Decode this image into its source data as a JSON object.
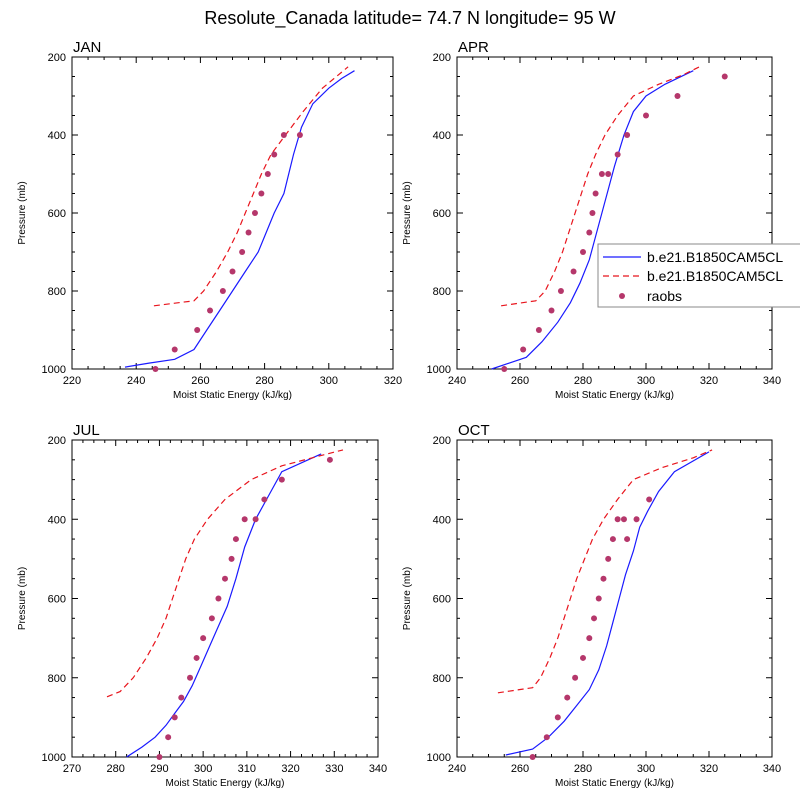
{
  "figure_title": "Resolute_Canada  latitude= 74.7 N longitude= 95 W",
  "colors": {
    "model_solid": "#1a1aff",
    "model_dashed": "#e8141c",
    "raobs": "#b5376b"
  },
  "legend": [
    "b.e21.B1850CAM5CL",
    "b.e21.B1850CAM5CL",
    "raobs"
  ],
  "chart_data": [
    {
      "type": "line",
      "title": "JAN",
      "xlabel": "Moist Static Energy (kJ/kg)",
      "ylabel": "Pressure (mb)",
      "xlim": [
        220,
        320
      ],
      "ylim": [
        200,
        1000
      ],
      "y_reversed": true,
      "xticks": [
        220,
        240,
        260,
        280,
        300,
        320
      ],
      "yticks": [
        200,
        400,
        600,
        800,
        1000
      ],
      "series": [
        {
          "name": "b.e21.B1850CAM5CL",
          "style": "solid",
          "x": [
            236.5,
            244,
            252,
            258,
            262,
            266,
            270,
            274,
            278,
            280.5,
            283,
            286,
            289,
            291.5,
            295,
            300,
            304,
            308
          ],
          "y": [
            995,
            985,
            975,
            950,
            900,
            850,
            800,
            750,
            700,
            650,
            600,
            550,
            450,
            380,
            320,
            280,
            255,
            235
          ]
        },
        {
          "name": "b.e21.B1850CAM5CL",
          "style": "dashed",
          "x": [
            245.5,
            258,
            261,
            265,
            268.5,
            271.5,
            274,
            276.5,
            279,
            282,
            286.5,
            292,
            298,
            306
          ],
          "y": [
            838,
            825,
            800,
            750,
            700,
            650,
            600,
            550,
            500,
            450,
            400,
            340,
            280,
            225
          ]
        },
        {
          "name": "raobs",
          "style": "markers",
          "x": [
            246,
            252,
            259,
            263,
            267,
            270,
            273,
            275,
            277,
            279,
            281,
            283,
            286,
            291
          ],
          "y": [
            1000,
            950,
            900,
            850,
            800,
            750,
            700,
            650,
            600,
            550,
            500,
            450,
            400,
            400
          ]
        }
      ]
    },
    {
      "type": "line",
      "title": "APR",
      "xlabel": "Moist Static Energy (kJ/kg)",
      "ylabel": "Pressure (mb)",
      "xlim": [
        240,
        340
      ],
      "ylim": [
        200,
        1000
      ],
      "y_reversed": true,
      "xticks": [
        240,
        260,
        280,
        300,
        320,
        340
      ],
      "yticks": [
        200,
        400,
        600,
        800,
        1000
      ],
      "series": [
        {
          "name": "b.e21.B1850CAM5CL",
          "style": "solid",
          "x": [
            251,
            262,
            267,
            272,
            276,
            279,
            282,
            284,
            286,
            288,
            290,
            293,
            296,
            300,
            306,
            315
          ],
          "y": [
            1000,
            970,
            930,
            880,
            830,
            780,
            720,
            660,
            600,
            540,
            480,
            400,
            340,
            300,
            270,
            235
          ]
        },
        {
          "name": "b.e21.B1850CAM5CL",
          "style": "dashed",
          "x": [
            254,
            265,
            268,
            271,
            273.5,
            275.5,
            277.5,
            279.5,
            281.5,
            284,
            287,
            291,
            296,
            304,
            312,
            317
          ],
          "y": [
            838,
            825,
            800,
            750,
            700,
            650,
            600,
            550,
            500,
            450,
            400,
            350,
            300,
            270,
            245,
            225
          ]
        },
        {
          "name": "raobs",
          "style": "markers",
          "x": [
            255,
            261,
            266,
            270,
            273,
            277,
            280,
            282,
            283,
            284,
            286,
            288,
            291,
            294,
            300,
            310,
            325
          ],
          "y": [
            1000,
            950,
            900,
            850,
            800,
            750,
            700,
            650,
            600,
            550,
            500,
            500,
            450,
            400,
            350,
            300,
            250
          ]
        }
      ]
    },
    {
      "type": "line",
      "title": "JUL",
      "xlabel": "Moist Static Energy (kJ/kg)",
      "ylabel": "Pressure (mb)",
      "xlim": [
        270,
        340
      ],
      "ylim": [
        200,
        1000
      ],
      "y_reversed": true,
      "xticks": [
        270,
        280,
        290,
        300,
        310,
        320,
        330,
        340
      ],
      "yticks": [
        200,
        400,
        600,
        800,
        1000
      ],
      "series": [
        {
          "name": "b.e21.B1850CAM5CL",
          "style": "solid",
          "x": [
            282.5,
            286,
            289,
            291.5,
            293.5,
            295.5,
            297.5,
            299.5,
            301.5,
            303.5,
            305.5,
            307.5,
            309.5,
            312,
            315,
            318,
            323,
            327
          ],
          "y": [
            1000,
            975,
            950,
            920,
            890,
            860,
            820,
            770,
            720,
            670,
            620,
            550,
            470,
            400,
            340,
            280,
            255,
            235
          ]
        },
        {
          "name": "b.e21.B1850CAM5CL",
          "style": "dashed",
          "x": [
            278,
            281,
            284,
            287,
            289.5,
            291.5,
            293,
            294.5,
            296,
            298,
            301,
            305,
            311,
            318,
            325,
            332
          ],
          "y": [
            848,
            835,
            800,
            750,
            700,
            650,
            600,
            550,
            500,
            450,
            400,
            350,
            300,
            265,
            245,
            225
          ]
        },
        {
          "name": "raobs",
          "style": "markers",
          "x": [
            290,
            292,
            293.5,
            295,
            297,
            298.5,
            300,
            302,
            303.5,
            305,
            306.5,
            307.5,
            309.5,
            312,
            314,
            318,
            329
          ],
          "y": [
            1000,
            950,
            900,
            850,
            800,
            750,
            700,
            650,
            600,
            550,
            500,
            450,
            400,
            400,
            350,
            300,
            250
          ]
        }
      ]
    },
    {
      "type": "line",
      "title": "OCT",
      "xlabel": "Moist Static Energy (kJ/kg)",
      "ylabel": "Pressure (mb)",
      "xlim": [
        240,
        340
      ],
      "ylim": [
        200,
        1000
      ],
      "y_reversed": true,
      "xticks": [
        240,
        260,
        280,
        300,
        320,
        340
      ],
      "yticks": [
        200,
        400,
        600,
        800,
        1000
      ],
      "series": [
        {
          "name": "b.e21.B1850CAM5CL",
          "style": "solid",
          "x": [
            255.5,
            264,
            269,
            274,
            278,
            282,
            285,
            287.5,
            289.5,
            291.5,
            293.5,
            296,
            298,
            300.5,
            304,
            309,
            320
          ],
          "y": [
            995,
            980,
            950,
            910,
            870,
            830,
            780,
            720,
            660,
            600,
            540,
            480,
            420,
            380,
            330,
            280,
            230
          ]
        },
        {
          "name": "b.e21.B1850CAM5CL",
          "style": "dashed",
          "x": [
            253,
            264,
            266.5,
            269.5,
            272,
            274,
            276,
            278,
            280.5,
            283,
            286.5,
            291,
            296,
            305,
            315,
            321
          ],
          "y": [
            838,
            825,
            800,
            750,
            700,
            650,
            600,
            550,
            500,
            450,
            400,
            350,
            300,
            270,
            245,
            225
          ]
        },
        {
          "name": "raobs",
          "style": "markers",
          "x": [
            264,
            268.5,
            272,
            275,
            277.5,
            280,
            282,
            283.5,
            285,
            286.5,
            288,
            289.5,
            291,
            293,
            294,
            297,
            301
          ],
          "y": [
            1000,
            950,
            900,
            850,
            800,
            750,
            700,
            650,
            600,
            550,
            500,
            450,
            400,
            400,
            450,
            400,
            350
          ]
        }
      ]
    }
  ]
}
